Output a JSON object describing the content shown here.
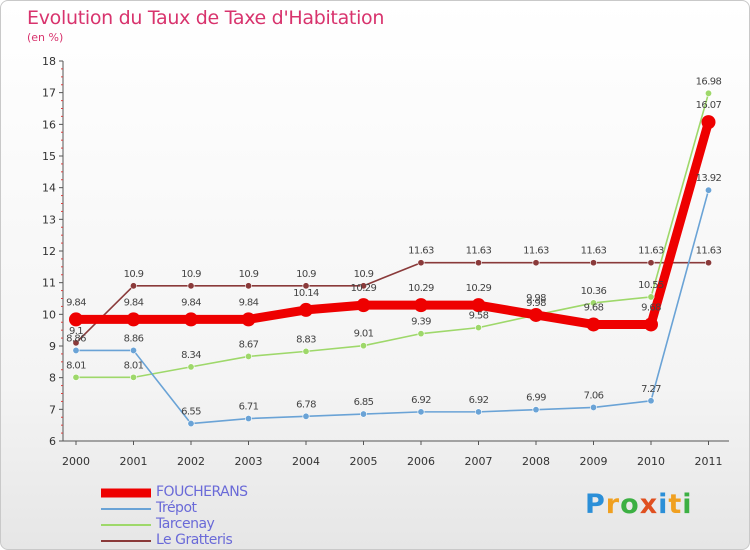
{
  "title": "Evolution du Taux de Taxe d'Habitation",
  "unit": "(en %)",
  "brand": {
    "letters": [
      "P",
      "r",
      "o",
      "x",
      "i",
      "t",
      "i"
    ],
    "colors": [
      "#2b8fd8",
      "#f0a020",
      "#3cb043",
      "#e05020",
      "#2b8fd8",
      "#f0a020",
      "#3cb043"
    ]
  },
  "chart_data": {
    "type": "line",
    "title": "Evolution du Taux de Taxe d'Habitation",
    "ylabel": "(en %)",
    "x": [
      "2000",
      "2001",
      "2002",
      "2003",
      "2004",
      "2005",
      "2006",
      "2007",
      "2008",
      "2009",
      "2010",
      "2011"
    ],
    "ylim": [
      6,
      18
    ],
    "yticks": [
      "6",
      "7",
      "8",
      "9",
      "10",
      "11",
      "12",
      "13",
      "14",
      "15",
      "16",
      "17",
      "18"
    ],
    "grid": false,
    "legend_position": "bottom-left",
    "series": [
      {
        "name": "FOUCHERANS",
        "color": "#ee0000",
        "values": [
          9.84,
          9.84,
          9.84,
          9.84,
          10.14,
          10.29,
          10.29,
          10.29,
          9.98,
          9.68,
          9.68,
          16.07
        ],
        "labels": [
          "9.84",
          "9.84",
          "9.84",
          "9.84",
          "10.14",
          "10.29",
          "10.29",
          "10.29",
          "9.98",
          "9.68",
          "9.68",
          "16.07"
        ]
      },
      {
        "name": "Trépot",
        "color": "#6aa3d6",
        "values": [
          8.86,
          8.86,
          6.55,
          6.71,
          6.78,
          6.85,
          6.92,
          6.92,
          6.99,
          7.06,
          7.27,
          13.92
        ],
        "labels": [
          "8.86",
          "8.86",
          "6.55",
          "6.71",
          "6.78",
          "6.85",
          "6.92",
          "6.92",
          "6.99",
          "7.06",
          "7.27",
          "13.92"
        ]
      },
      {
        "name": "Tarcenay",
        "color": "#9ed86a",
        "values": [
          8.01,
          8.01,
          8.34,
          8.67,
          8.83,
          9.01,
          9.39,
          9.58,
          9.98,
          10.36,
          10.55,
          16.98
        ],
        "labels": [
          "8.01",
          "8.01",
          "8.34",
          "8.67",
          "8.83",
          "9.01",
          "9.39",
          "9.58",
          "9.98",
          "10.36",
          "10.55",
          "16.98"
        ]
      },
      {
        "name": "Le Gratteris",
        "color": "#8a3a3a",
        "values": [
          9.1,
          10.9,
          10.9,
          10.9,
          10.9,
          10.9,
          11.63,
          11.63,
          11.63,
          11.63,
          11.63,
          11.63
        ],
        "labels": [
          "9.1",
          "10.9",
          "10.9",
          "10.9",
          "10.9",
          "10.9",
          "11.63",
          "11.63",
          "11.63",
          "11.63",
          "11.63",
          "11.63"
        ]
      }
    ]
  }
}
